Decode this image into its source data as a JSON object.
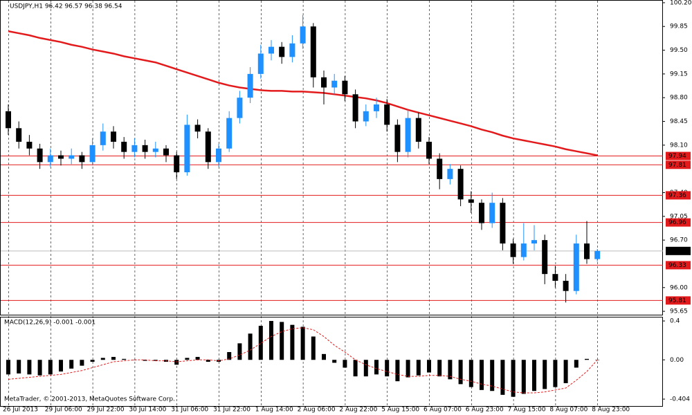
{
  "chart_data": [
    {
      "type": "candlestick",
      "title": "USDJPY,H1  96.42 96.57 96.38 96.54",
      "categories": [
        "26 Jul 2013",
        null,
        null,
        null,
        "29 Jul 06:00",
        null,
        null,
        null,
        "29 Jul 22:00",
        null,
        null,
        null,
        "30 Jul 14:00",
        null,
        null,
        null,
        "31 Jul 06:00",
        null,
        null,
        null,
        "31 Jul 22:00",
        null,
        null,
        null,
        "1 Aug 14:00",
        null,
        null,
        null,
        "2 Aug 06:00",
        null,
        null,
        null,
        "2 Aug 22:00",
        null,
        null,
        null,
        "5 Aug 15:00",
        null,
        null,
        null,
        "6 Aug 07:00",
        null,
        null,
        null,
        "6 Aug 23:00",
        null,
        null,
        null,
        "7 Aug 15:00",
        null,
        null,
        null,
        "8 Aug 07:00",
        null,
        null,
        null,
        "8 Aug 23:00"
      ],
      "candles": [
        [
          98.6,
          98.7,
          98.25,
          98.35
        ],
        [
          98.35,
          98.45,
          98.05,
          98.15
        ],
        [
          98.15,
          98.25,
          97.95,
          98.05
        ],
        [
          98.05,
          98.12,
          97.75,
          97.85
        ],
        [
          97.85,
          98.05,
          97.78,
          97.95
        ],
        [
          97.95,
          98.02,
          97.8,
          97.9
        ],
        [
          97.9,
          98.05,
          97.82,
          97.95
        ],
        [
          97.95,
          98.0,
          97.75,
          97.85
        ],
        [
          97.85,
          98.2,
          97.8,
          98.1
        ],
        [
          98.1,
          98.42,
          98.02,
          98.3
        ],
        [
          98.3,
          98.38,
          98.05,
          98.15
        ],
        [
          98.15,
          98.22,
          97.9,
          98.0
        ],
        [
          98.0,
          98.2,
          97.92,
          98.1
        ],
        [
          98.1,
          98.18,
          97.9,
          98.0
        ],
        [
          98.0,
          98.15,
          97.92,
          98.05
        ],
        [
          98.05,
          98.1,
          97.85,
          97.95
        ],
        [
          97.95,
          98.0,
          97.6,
          97.7
        ],
        [
          97.7,
          98.55,
          97.65,
          98.4
        ],
        [
          98.4,
          98.48,
          98.2,
          98.3
        ],
        [
          98.3,
          98.35,
          97.75,
          97.85
        ],
        [
          97.85,
          98.12,
          97.78,
          98.05
        ],
        [
          98.05,
          98.6,
          98.0,
          98.5
        ],
        [
          98.5,
          98.9,
          98.42,
          98.8
        ],
        [
          98.8,
          99.25,
          98.72,
          99.15
        ],
        [
          99.15,
          99.58,
          99.08,
          99.45
        ],
        [
          99.45,
          99.65,
          99.35,
          99.55
        ],
        [
          99.55,
          99.62,
          99.3,
          99.4
        ],
        [
          99.4,
          99.72,
          99.32,
          99.6
        ],
        [
          99.6,
          100.02,
          99.52,
          99.85
        ],
        [
          99.85,
          99.9,
          98.95,
          99.1
        ],
        [
          99.1,
          99.2,
          98.7,
          98.95
        ],
        [
          98.95,
          99.15,
          98.85,
          99.05
        ],
        [
          99.05,
          99.12,
          98.75,
          98.85
        ],
        [
          98.85,
          98.92,
          98.35,
          98.45
        ],
        [
          98.45,
          98.7,
          98.38,
          98.6
        ],
        [
          98.6,
          98.8,
          98.5,
          98.7
        ],
        [
          98.7,
          98.78,
          98.3,
          98.4
        ],
        [
          98.4,
          98.48,
          97.85,
          98.0
        ],
        [
          98.0,
          98.62,
          97.92,
          98.5
        ],
        [
          98.5,
          98.58,
          98.05,
          98.15
        ],
        [
          98.15,
          98.22,
          97.82,
          97.9
        ],
        [
          97.9,
          97.98,
          97.45,
          97.6
        ],
        [
          97.6,
          97.82,
          97.52,
          97.75
        ],
        [
          97.75,
          97.8,
          97.2,
          97.3
        ],
        [
          97.3,
          97.42,
          97.1,
          97.25
        ],
        [
          97.25,
          97.3,
          96.85,
          96.95
        ],
        [
          96.95,
          97.4,
          96.88,
          97.25
        ],
        [
          97.25,
          97.32,
          96.55,
          96.65
        ],
        [
          96.65,
          96.72,
          96.35,
          96.45
        ],
        [
          96.45,
          96.95,
          96.4,
          96.65
        ],
        [
          96.65,
          96.92,
          96.55,
          96.7
        ],
        [
          96.7,
          96.78,
          96.05,
          96.2
        ],
        [
          96.2,
          96.32,
          96.0,
          96.1
        ],
        [
          96.1,
          96.2,
          95.78,
          95.95
        ],
        [
          95.95,
          96.78,
          95.9,
          96.65
        ],
        [
          96.65,
          96.98,
          96.35,
          96.42
        ],
        [
          96.42,
          96.57,
          96.38,
          96.54
        ]
      ],
      "up_color": "#1e90ff",
      "down_color": "#000000",
      "ma": {
        "color": "#e31a1c",
        "values": [
          99.78,
          99.75,
          99.72,
          99.68,
          99.65,
          99.62,
          99.58,
          99.55,
          99.51,
          99.48,
          99.45,
          99.41,
          99.38,
          99.35,
          99.32,
          99.27,
          99.22,
          99.17,
          99.12,
          99.07,
          99.02,
          98.98,
          98.95,
          98.93,
          98.91,
          98.9,
          98.9,
          98.89,
          98.89,
          98.88,
          98.87,
          98.85,
          98.83,
          98.81,
          98.79,
          98.76,
          98.72,
          98.67,
          98.62,
          98.58,
          98.54,
          98.5,
          98.46,
          98.42,
          98.38,
          98.33,
          98.29,
          98.24,
          98.2,
          98.17,
          98.14,
          98.11,
          98.08,
          98.04,
          98.01,
          97.98,
          97.95
        ]
      },
      "levels": {
        "color": "#e31a1c",
        "values": [
          97.94,
          97.81,
          97.36,
          96.96,
          96.33,
          95.81
        ]
      },
      "current_price": 96.54,
      "ylim": [
        95.6,
        100.24
      ],
      "yticks": [
        {
          "value": 100.2,
          "label": "100.20"
        },
        99.85,
        {
          "value": 99.5,
          "label": "99.50"
        },
        99.15,
        {
          "value": 98.8,
          "label": "98.80"
        },
        98.45,
        {
          "value": 98.1,
          "label": "98.10"
        },
        {
          "value": 97.4,
          "label": "97.40"
        },
        97.05,
        {
          "value": 96.7,
          "label": "96.70"
        },
        {
          "value": 96.0,
          "label": "96.00"
        },
        95.65
      ],
      "grid": true
    },
    {
      "type": "macd",
      "title": "MACD(12,26,9) -0.001 -0.001",
      "values": [
        -0.15,
        -0.14,
        -0.15,
        -0.16,
        -0.15,
        -0.12,
        -0.09,
        -0.06,
        -0.02,
        0.02,
        0.03,
        0.01,
        0.0,
        -0.01,
        -0.01,
        -0.02,
        -0.05,
        0.02,
        0.03,
        -0.02,
        -0.02,
        0.08,
        0.17,
        0.27,
        0.35,
        0.4,
        0.39,
        0.36,
        0.34,
        0.24,
        0.06,
        -0.03,
        -0.08,
        -0.17,
        -0.17,
        -0.15,
        -0.17,
        -0.22,
        -0.18,
        -0.16,
        -0.13,
        -0.17,
        -0.2,
        -0.25,
        -0.28,
        -0.31,
        -0.32,
        -0.36,
        -0.38,
        -0.35,
        -0.32,
        -0.3,
        -0.28,
        -0.24,
        -0.08,
        0.01,
        -0.001
      ],
      "signal": {
        "color": "#e31a1c",
        "values": [
          -0.2,
          -0.19,
          -0.18,
          -0.17,
          -0.16,
          -0.15,
          -0.13,
          -0.11,
          -0.08,
          -0.05,
          -0.02,
          -0.01,
          0.0,
          0.0,
          -0.01,
          -0.01,
          -0.02,
          -0.01,
          0.0,
          0.0,
          -0.01,
          0.01,
          0.05,
          0.1,
          0.17,
          0.24,
          0.29,
          0.32,
          0.33,
          0.31,
          0.24,
          0.15,
          0.08,
          0.0,
          -0.05,
          -0.09,
          -0.12,
          -0.15,
          -0.17,
          -0.17,
          -0.16,
          -0.16,
          -0.17,
          -0.2,
          -0.22,
          -0.25,
          -0.27,
          -0.3,
          -0.33,
          -0.34,
          -0.34,
          -0.33,
          -0.31,
          -0.29,
          -0.21,
          -0.12,
          -0.001
        ]
      },
      "color": "#000000",
      "ylim": [
        -0.482,
        0.443
      ],
      "yticks": [
        0.4,
        {
          "value": 0,
          "label": "0.00"
        },
        -0.404
      ]
    }
  ],
  "footer": "MetaTrader, © 2001-2013, MetaQuotes Software Corp."
}
